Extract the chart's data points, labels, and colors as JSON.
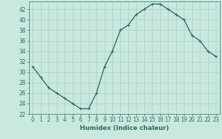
{
  "x": [
    0,
    1,
    2,
    3,
    4,
    5,
    6,
    7,
    8,
    9,
    10,
    11,
    12,
    13,
    14,
    15,
    16,
    17,
    18,
    19,
    20,
    21,
    22,
    23
  ],
  "y": [
    31,
    29,
    27,
    26,
    25,
    24,
    23,
    23,
    26,
    31,
    34,
    38,
    39,
    41,
    42,
    43,
    43,
    42,
    41,
    40,
    37,
    36,
    34,
    33
  ],
  "line_color": "#2d6b5e",
  "marker": "+",
  "bg_color": "#c8e8e0",
  "grid_color": "#aacccc",
  "xlabel": "Humidex (Indice chaleur)",
  "xlim": [
    -0.5,
    23.5
  ],
  "ylim": [
    22,
    43.5
  ],
  "yticks": [
    22,
    24,
    26,
    28,
    30,
    32,
    34,
    36,
    38,
    40,
    42
  ],
  "xticks": [
    0,
    1,
    2,
    3,
    4,
    5,
    6,
    7,
    8,
    9,
    10,
    11,
    12,
    13,
    14,
    15,
    16,
    17,
    18,
    19,
    20,
    21,
    22,
    23
  ],
  "xlabel_fontsize": 6.5,
  "tick_fontsize": 5.5,
  "linewidth": 1.0,
  "markersize": 3,
  "markeredgewidth": 0.8
}
